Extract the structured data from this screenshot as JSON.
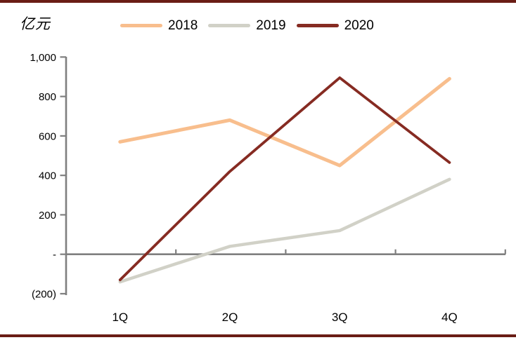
{
  "unit_label": "亿元",
  "chart_data": {
    "type": "line",
    "title": "",
    "categories": [
      "1Q",
      "2Q",
      "3Q",
      "4Q"
    ],
    "series": [
      {
        "name": "2018",
        "color": "#F8BE8D",
        "values": [
          570,
          680,
          450,
          890
        ]
      },
      {
        "name": "2019",
        "color": "#D1D1C7",
        "values": [
          -140,
          40,
          120,
          380
        ]
      },
      {
        "name": "2020",
        "color": "#862B22",
        "values": [
          -130,
          420,
          895,
          465
        ]
      }
    ],
    "ylabel": "亿元",
    "xlabel": "",
    "ylim": [
      -200,
      1000
    ],
    "ytick_step": 200,
    "ytick_labels": [
      "(200)",
      "-",
      "200",
      "400",
      "600",
      "800",
      "1,000"
    ],
    "grid": false,
    "legend_position": "top"
  },
  "axis": {
    "color": "#7F7F7F"
  },
  "frame": {
    "border_color": "#6A1D15"
  }
}
